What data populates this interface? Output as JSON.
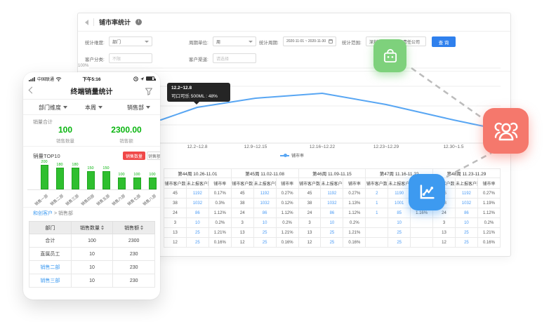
{
  "desktop": {
    "title": "铺市率统计",
    "filters": {
      "dimension_label": "统计维度:",
      "dimension_value": "部门",
      "period_unit_label": "周期单位:",
      "period_unit_value": "周",
      "period_label": "统计周期:",
      "period_value": "2020-11-01 ~ 2020-11-30",
      "scope_label": "统计范围:",
      "scope_value": "深圳乐购商贸有限责任公司",
      "category_label": "客户分类:",
      "category_placeholder": "不限",
      "channel_label": "客户渠道:",
      "channel_placeholder": "请选择",
      "search_button": "查 询"
    },
    "chart": {
      "type": "line",
      "y_top_label": "100%",
      "legend": "铺市率",
      "x_labels": [
        "12.2~12.8",
        "12.9~12.15",
        "12.16~12.22",
        "12.23~12.29",
        "12.30~1.5"
      ],
      "tooltip": {
        "title": "12.2~12.8",
        "text": "可口可乐 500ML : 48%"
      }
    },
    "table": {
      "weeks": [
        {
          "label": "第44周",
          "range": "10.26-11.01"
        },
        {
          "label": "第45周",
          "range": "11.02-11.08"
        },
        {
          "label": "第46周",
          "range": "11.09-11.15"
        },
        {
          "label": "第47周",
          "range": "11.16-11.22"
        },
        {
          "label": "第48周",
          "range": "11.23-11.29"
        }
      ],
      "sub_headers": [
        "铺市客户数",
        "未上报客户数",
        "铺市率"
      ],
      "link_cols": [
        1,
        4,
        7,
        9,
        10,
        13
      ],
      "rows": [
        [
          "45",
          "1192",
          "0.17%",
          "45",
          "1192",
          "0.27%",
          "45",
          "1192",
          "0.27%",
          "2",
          "1190",
          "",
          "45",
          "1192",
          "0.27%"
        ],
        [
          "38",
          "1032",
          "0.3%",
          "38",
          "1032",
          "0.12%",
          "38",
          "1032",
          "1.13%",
          "1",
          "1001",
          "",
          "38",
          "1032",
          "1.19%"
        ],
        [
          "24",
          "86",
          "1.12%",
          "24",
          "86",
          "1.12%",
          "24",
          "86",
          "1.12%",
          "1",
          "85",
          "1.16%",
          "24",
          "86",
          "1.12%"
        ],
        [
          "3",
          "10",
          "0.2%",
          "3",
          "10",
          "0.2%",
          "3",
          "10",
          "0.2%",
          "",
          "10",
          "",
          "3",
          "10",
          "0.2%"
        ],
        [
          "13",
          "25",
          "1.21%",
          "13",
          "25",
          "1.21%",
          "13",
          "25",
          "1.21%",
          "",
          "25",
          "",
          "13",
          "25",
          "1.21%"
        ],
        [
          "12",
          "25",
          "0.16%",
          "12",
          "25",
          "0.16%",
          "12",
          "25",
          "0.16%",
          "",
          "25",
          "",
          "12",
          "25",
          "0.16%"
        ]
      ]
    }
  },
  "mobile": {
    "status": {
      "carrier": "中国联通",
      "time": "下午5:16"
    },
    "nav_title": "终端销量统计",
    "filters": [
      "部门维度",
      "本周",
      "销售部"
    ],
    "summary": {
      "title": "销量合计",
      "quantity_value": "100",
      "quantity_label": "销售数量",
      "amount_value": "2300.00",
      "amount_label": "销售额"
    },
    "top10": {
      "title": "销量TOP10",
      "toggle_quantity": "销售数量",
      "toggle_amount": "销售额",
      "bars": {
        "type": "bar",
        "categories": [
          "销售一部",
          "销售二部",
          "销售三部",
          "销售四部",
          "销售五部",
          "销售六部",
          "销售七部",
          "销售八部"
        ],
        "values": [
          200,
          180,
          180,
          150,
          150,
          100,
          100,
          100
        ]
      }
    },
    "breadcrumb": {
      "link": "和创客户",
      "separator": ">",
      "current": "销售部"
    },
    "table": {
      "headers": [
        "部门",
        "销售数量",
        "销售额"
      ],
      "sortable_cols": [
        1,
        2
      ],
      "link_rows": [
        2,
        3
      ],
      "rows": [
        [
          "合计",
          "100",
          "2300"
        ],
        [
          "直属员工",
          "10",
          "230"
        ],
        [
          "销售二部",
          "10",
          "230"
        ],
        [
          "销售三部",
          "10",
          "230"
        ]
      ]
    }
  },
  "float_icons": {
    "basket_color": "#7ed17c",
    "group_color": "#f5786c",
    "chart_color": "#3d9af0",
    "line_color": "#bcbcbc",
    "chart_line_color": "#58a6f3"
  }
}
